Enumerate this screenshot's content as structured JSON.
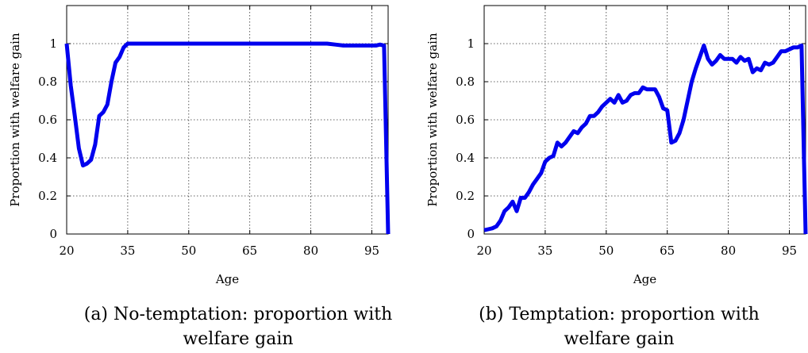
{
  "colors": {
    "line": "#0000ee"
  },
  "chart_data": [
    {
      "type": "line",
      "caption_lines": [
        "(a) No-temptation: proportion with",
        "welfare gain"
      ],
      "xlabel": "Age",
      "ylabel": "Proportion with welfare gain",
      "xlim": [
        20,
        99
      ],
      "ylim": [
        0,
        1.2
      ],
      "xticks": [
        20,
        35,
        50,
        65,
        80,
        95
      ],
      "yticks": [
        0,
        0.2,
        0.4,
        0.6,
        0.8,
        1
      ],
      "ytick_labels": [
        "0",
        "0.2",
        "0.4",
        "0.6",
        "0.8",
        "1"
      ],
      "grid": true,
      "series": [
        {
          "x": [
            20,
            21,
            22,
            23,
            24,
            25,
            26,
            27,
            28,
            29,
            30,
            31,
            32,
            33,
            34,
            35,
            40,
            50,
            60,
            70,
            80,
            84,
            86,
            88,
            90,
            92,
            94,
            96,
            97,
            98,
            99
          ],
          "y": [
            1.0,
            0.78,
            0.62,
            0.45,
            0.36,
            0.37,
            0.39,
            0.47,
            0.62,
            0.64,
            0.68,
            0.8,
            0.9,
            0.93,
            0.98,
            1.0,
            1.0,
            1.0,
            1.0,
            1.0,
            1.0,
            1.0,
            0.995,
            0.99,
            0.99,
            0.99,
            0.99,
            0.99,
            0.995,
            0.99,
            0.0
          ]
        }
      ]
    },
    {
      "type": "line",
      "caption_lines": [
        "(b) Temptation: proportion with",
        "welfare gain"
      ],
      "xlabel": "Age",
      "ylabel": "Proportion with welfare gain",
      "xlim": [
        20,
        99
      ],
      "ylim": [
        0,
        1.2
      ],
      "xticks": [
        20,
        35,
        50,
        65,
        80,
        95
      ],
      "yticks": [
        0,
        0.2,
        0.4,
        0.6,
        0.8,
        1
      ],
      "ytick_labels": [
        "0",
        "0.2",
        "0.4",
        "0.6",
        "0.8",
        "1"
      ],
      "grid": true,
      "series": [
        {
          "x": [
            20,
            21,
            22,
            23,
            24,
            25,
            26,
            27,
            28,
            29,
            30,
            31,
            32,
            33,
            34,
            35,
            36,
            37,
            38,
            39,
            40,
            41,
            42,
            43,
            44,
            45,
            46,
            47,
            48,
            49,
            50,
            51,
            52,
            53,
            54,
            55,
            56,
            57,
            58,
            59,
            60,
            61,
            62,
            63,
            64,
            65,
            66,
            67,
            68,
            69,
            70,
            71,
            72,
            73,
            74,
            75,
            76,
            77,
            78,
            79,
            80,
            81,
            82,
            83,
            84,
            85,
            86,
            87,
            88,
            89,
            90,
            91,
            92,
            93,
            94,
            95,
            96,
            97,
            98,
            99
          ],
          "y": [
            0.02,
            0.025,
            0.03,
            0.04,
            0.07,
            0.12,
            0.14,
            0.17,
            0.12,
            0.19,
            0.19,
            0.22,
            0.26,
            0.29,
            0.32,
            0.38,
            0.4,
            0.41,
            0.48,
            0.46,
            0.48,
            0.51,
            0.54,
            0.53,
            0.56,
            0.58,
            0.62,
            0.62,
            0.64,
            0.67,
            0.69,
            0.71,
            0.69,
            0.73,
            0.69,
            0.7,
            0.73,
            0.74,
            0.74,
            0.77,
            0.76,
            0.76,
            0.76,
            0.72,
            0.66,
            0.65,
            0.48,
            0.49,
            0.53,
            0.6,
            0.7,
            0.8,
            0.87,
            0.93,
            0.99,
            0.92,
            0.89,
            0.91,
            0.94,
            0.92,
            0.92,
            0.92,
            0.9,
            0.93,
            0.91,
            0.92,
            0.85,
            0.87,
            0.86,
            0.9,
            0.89,
            0.9,
            0.93,
            0.96,
            0.96,
            0.97,
            0.98,
            0.98,
            0.99,
            0.0
          ]
        }
      ]
    }
  ]
}
